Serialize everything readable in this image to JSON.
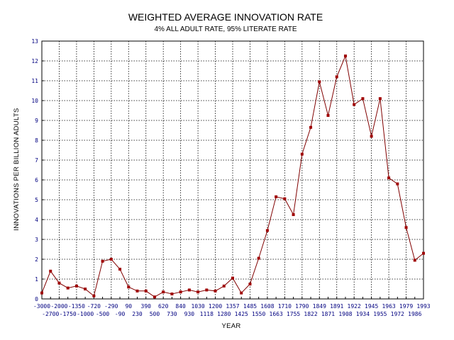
{
  "chart_data": {
    "type": "line",
    "title": "WEIGHTED AVERAGE INNOVATION RATE",
    "subtitle": "4% ALL ADULT RATE, 95% LITERATE RATE",
    "xlabel": "YEAR",
    "ylabel": "INNOVATIONS PER BILLION ADULTS",
    "ylim": [
      0,
      13
    ],
    "yticks": [
      "0",
      "1",
      "2",
      "3",
      "4",
      "5",
      "6",
      "7",
      "8",
      "9",
      "10",
      "11",
      "12",
      "13"
    ],
    "grid": true,
    "categories": [
      "-3000",
      "-2700",
      "-2000",
      "-1750",
      "-1350",
      "-1000",
      "-720",
      "-500",
      "-290",
      "-90",
      "90",
      "230",
      "390",
      "500",
      "620",
      "730",
      "840",
      "930",
      "1030",
      "1118",
      "1200",
      "1280",
      "1357",
      "1425",
      "1485",
      "1550",
      "1608",
      "1663",
      "1710",
      "1755",
      "1790",
      "1822",
      "1849",
      "1871",
      "1891",
      "1908",
      "1922",
      "1934",
      "1945",
      "1955",
      "1963",
      "1972",
      "1979",
      "1986",
      "1993"
    ],
    "values": [
      0.3,
      1.4,
      0.8,
      0.55,
      0.65,
      0.5,
      0.15,
      1.9,
      2.0,
      1.5,
      0.6,
      0.4,
      0.4,
      0.1,
      0.35,
      0.25,
      0.35,
      0.45,
      0.35,
      0.45,
      0.4,
      0.65,
      1.05,
      0.3,
      0.75,
      2.05,
      3.45,
      5.15,
      5.05,
      4.25,
      7.3,
      8.65,
      10.95,
      9.25,
      11.2,
      12.25,
      9.8,
      10.1,
      8.2,
      10.1,
      6.1,
      5.8,
      3.6,
      1.95,
      2.3
    ],
    "colors": {
      "line": "#800000",
      "marker": "#a00000",
      "tick_text": "#000080",
      "grid": "#000000"
    }
  }
}
